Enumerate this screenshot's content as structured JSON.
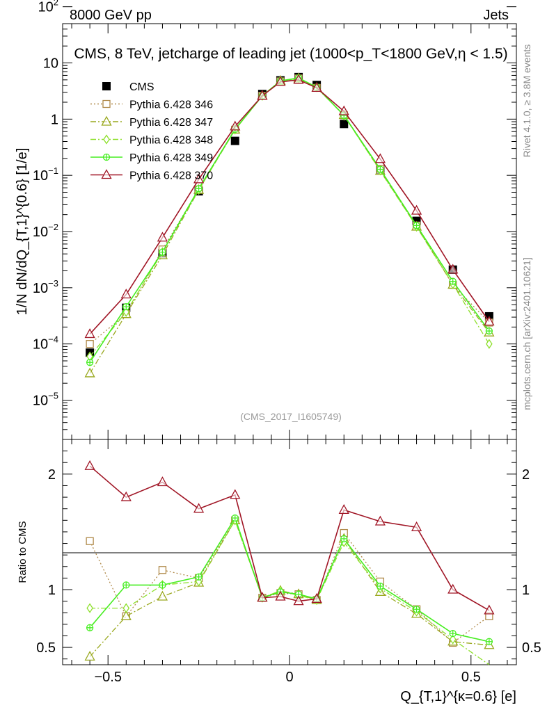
{
  "header": {
    "left": "8000 GeV pp",
    "right": "Jets"
  },
  "side_text": {
    "rivet": "Rivet 4.1.0, ≥ 3.8M events",
    "mcplots": "mcplots.cern.ch [arXiv:2401.10621]"
  },
  "chart_data": [
    {
      "panel": "main",
      "type": "line",
      "title": "CMS, 8 TeV, jetcharge of leading jet (1000<p_T<1800 GeV,η < 1.5)",
      "ylabel": "1/N dN/dQ_{T,1}^{0.6} [1/e]",
      "xlabel": "Q_{T,1}^{κ=0.6} [e]",
      "watermark": "(CMS_2017_I1605749)",
      "yscale": "log",
      "ylim": [
        2e-06,
        50
      ],
      "xlim": [
        -0.625,
        0.625
      ],
      "yticks": [
        {
          "value": 1e-05,
          "mant": "10",
          "exp": "−5"
        },
        {
          "value": 0.0001,
          "mant": "10",
          "exp": "−4"
        },
        {
          "value": 0.001,
          "mant": "10",
          "exp": "−3"
        },
        {
          "value": 0.01,
          "mant": "10",
          "exp": "−2"
        },
        {
          "value": 0.1,
          "mant": "10",
          "exp": "−1"
        },
        {
          "value": 1,
          "mant": "1",
          "exp": ""
        },
        {
          "value": 10,
          "mant": "10",
          "exp": ""
        },
        {
          "value": 100,
          "mant": "10",
          "exp": "2"
        }
      ],
      "x": [
        -0.55,
        -0.45,
        -0.35,
        -0.25,
        -0.15,
        -0.075,
        -0.025,
        0.025,
        0.075,
        0.15,
        0.25,
        0.35,
        0.45,
        0.55
      ],
      "series": [
        {
          "name": "CMS",
          "color": "#000000",
          "marker": "square-filled",
          "line": "none",
          "values": [
            7e-05,
            0.00044,
            0.0041,
            0.052,
            0.41,
            2.8,
            4.9,
            5.6,
            4.05,
            0.82,
            0.125,
            0.0155,
            0.0021,
            0.00031
          ]
        },
        {
          "name": "Pythia 6.428 346",
          "color": "#b08a4a",
          "marker": "square-open",
          "line": "dotted",
          "values": [
            0.0001,
            0.00034,
            0.0048,
            0.056,
            0.65,
            2.6,
            4.7,
            5.3,
            3.6,
            1.18,
            0.13,
            0.0128,
            0.00113,
            0.00024
          ]
        },
        {
          "name": "Pythia 6.428 347",
          "color": "#99a81e",
          "marker": "triangle-open",
          "line": "dashdot",
          "values": [
            3e-05,
            0.00034,
            0.0038,
            0.055,
            0.65,
            2.6,
            4.8,
            5.3,
            3.6,
            1.18,
            0.12,
            0.0122,
            0.00113,
            0.00016
          ]
        },
        {
          "name": "Pythia 6.428 348",
          "color": "#8ee02c",
          "marker": "diamond-open",
          "line": "dashdot",
          "values": [
            6e-05,
            0.00037,
            0.0043,
            0.055,
            0.65,
            2.6,
            4.8,
            5.3,
            3.7,
            1.15,
            0.122,
            0.0122,
            0.00116,
            0.0001
          ]
        },
        {
          "name": "Pythia 6.428 349",
          "color": "#46ee20",
          "marker": "plus-circle",
          "line": "solid",
          "values": [
            4.7e-05,
            0.00046,
            0.0043,
            0.058,
            0.66,
            2.6,
            4.8,
            5.4,
            3.7,
            1.17,
            0.128,
            0.0128,
            0.0013,
            0.00017
          ]
        },
        {
          "name": "Pythia 6.428 370",
          "color": "#a01525",
          "marker": "triangle-open",
          "line": "solid",
          "values": [
            0.00015,
            0.00076,
            0.0078,
            0.085,
            0.74,
            2.6,
            4.6,
            5.0,
            3.6,
            1.38,
            0.195,
            0.0235,
            0.0021,
            0.00025
          ]
        }
      ]
    },
    {
      "panel": "ratio",
      "type": "line",
      "ylabel": "Ratio to CMS",
      "ylim": [
        0.35,
        2.3
      ],
      "yticks": [
        0.5,
        1,
        2
      ],
      "xticks": [
        -0.5,
        0,
        0.5
      ],
      "xtick_labels": [
        "−0.5",
        "0",
        "0.5"
      ],
      "x": [
        -0.55,
        -0.45,
        -0.35,
        -0.25,
        -0.15,
        -0.075,
        -0.025,
        0.025,
        0.075,
        0.15,
        0.25,
        0.35,
        0.45,
        0.55
      ],
      "series": [
        {
          "name": "Pythia 6.428 346",
          "values": [
            1.42,
            0.77,
            1.17,
            1.1,
            1.6,
            0.93,
            0.97,
            0.96,
            0.91,
            1.49,
            1.07,
            0.83,
            0.54,
            0.77
          ]
        },
        {
          "name": "Pythia 6.428 347",
          "values": [
            0.42,
            0.77,
            0.94,
            1.06,
            1.6,
            0.93,
            0.99,
            0.96,
            0.91,
            1.44,
            0.98,
            0.79,
            0.55,
            0.52
          ]
        },
        {
          "name": "Pythia 6.428 348",
          "values": [
            0.84,
            0.84,
            1.04,
            1.07,
            1.6,
            0.93,
            0.99,
            0.95,
            0.91,
            1.41,
            1.01,
            0.81,
            0.57,
            0.33
          ]
        },
        {
          "name": "Pythia 6.428 349",
          "values": [
            0.67,
            1.04,
            1.04,
            1.11,
            1.62,
            0.93,
            0.98,
            0.96,
            0.92,
            1.44,
            1.03,
            0.83,
            0.62,
            0.55
          ]
        },
        {
          "name": "Pythia 6.428 370",
          "values": [
            2.07,
            1.8,
            1.93,
            1.7,
            1.82,
            0.93,
            0.94,
            0.9,
            0.92,
            1.69,
            1.59,
            1.54,
            1.0,
            0.82
          ]
        }
      ]
    }
  ]
}
